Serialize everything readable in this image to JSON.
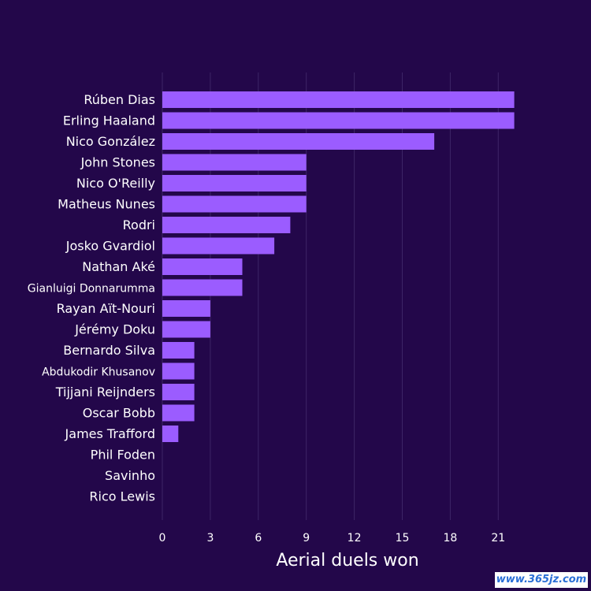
{
  "chart_data": {
    "type": "bar",
    "orientation": "horizontal",
    "categories": [
      "Rúben Dias",
      "Erling Haaland",
      "Nico González",
      "John Stones",
      "Nico O'Reilly",
      "Matheus Nunes",
      "Rodri",
      "Josko Gvardiol",
      "Nathan Aké",
      "Gianluigi Donnarumma",
      "Rayan Aït-Nouri",
      "Jérémy Doku",
      "Bernardo Silva",
      "Abdukodir Khusanov",
      "Tijjani Reijnders",
      "Oscar Bobb",
      "James Trafford",
      "Phil Foden",
      "Savinho",
      "Rico Lewis"
    ],
    "values": [
      22,
      22,
      17,
      9,
      9,
      9,
      8,
      7,
      5,
      5,
      3,
      3,
      2,
      2,
      2,
      2,
      1,
      0,
      0,
      0
    ],
    "xlabel": "Aerial duels won",
    "xlim": [
      0,
      22
    ],
    "xticks": [
      0,
      3,
      6,
      9,
      12,
      15,
      18,
      21
    ],
    "grid": "vertical",
    "bar_color": "#9b5cff",
    "background_color": "#23074a",
    "text_color": "#ffffff",
    "grid_color": "#3d2566"
  },
  "watermark": "www.365jz.com"
}
